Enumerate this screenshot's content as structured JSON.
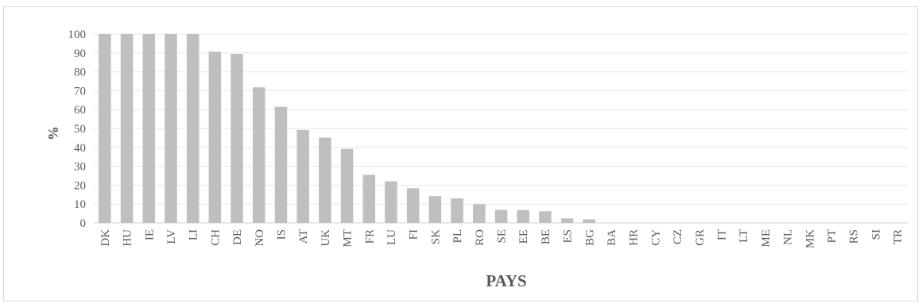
{
  "chart_data": {
    "type": "bar",
    "xlabel": "PAYS",
    "ylabel": "%",
    "ylim": [
      0,
      100
    ],
    "yticks": [
      0,
      10,
      20,
      30,
      40,
      50,
      60,
      70,
      80,
      90,
      100
    ],
    "grid": true,
    "legend": "none",
    "bar_color": "#bfbfbf",
    "grid_color": "#e6e6e6",
    "text_color": "#595959",
    "categories": [
      "DK",
      "HU",
      "IE",
      "LV",
      "LI",
      "CH",
      "DE",
      "NO",
      "IS",
      "AT",
      "UK",
      "MT",
      "FR",
      "LU",
      "FI",
      "SK",
      "PL",
      "RO",
      "SE",
      "EE",
      "BE",
      "ES",
      "BG",
      "BA",
      "HR",
      "CY",
      "CZ",
      "GR",
      "IT",
      "LT",
      "ME",
      "NL",
      "MK",
      "PT",
      "RS",
      "SI",
      "TR"
    ],
    "values": [
      100,
      100,
      100,
      100,
      100,
      90.7,
      89.5,
      71.8,
      61.5,
      49.2,
      45.2,
      39.2,
      25.5,
      22,
      18.4,
      14.2,
      13,
      9.9,
      6.9,
      6.8,
      6.2,
      2.4,
      1.9,
      0,
      0,
      0,
      0,
      0,
      0,
      0,
      0,
      0,
      0,
      0,
      0,
      0,
      0
    ]
  }
}
